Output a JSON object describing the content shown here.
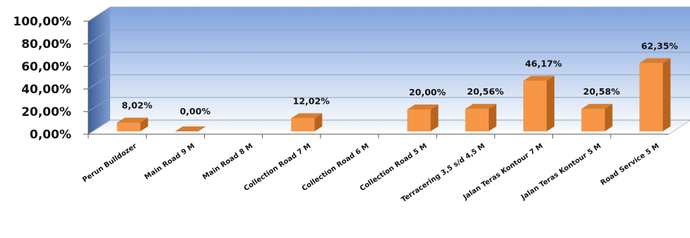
{
  "chart_data": {
    "type": "bar",
    "categories": [
      "Perun Bulldozer",
      "Main Road 9 M",
      "Main Road 8 M",
      "Collection Road 7 M",
      "Collection Road 6 M",
      "Collection Road 5 M",
      "Terracering 3,5 s/d 4,5 M",
      "Jalan Teras Kontour 7 M",
      "Jalan Teras Kontour 5 M",
      "Road Service 5 M"
    ],
    "values": [
      8.02,
      0.0,
      null,
      12.02,
      null,
      20.0,
      20.56,
      46.17,
      20.58,
      62.35
    ],
    "data_labels": [
      "8,02%",
      "0,00%",
      "",
      "12,02%",
      "",
      "20,00%",
      "20,56%",
      "46,17%",
      "20,58%",
      "62,35%"
    ],
    "y_ticks": [
      "0,00%",
      "20,00%",
      "40,00%",
      "60,00%",
      "80,00%",
      "100,00%"
    ],
    "ylim": [
      0,
      100
    ],
    "title": "",
    "xlabel": "",
    "ylabel": "",
    "grid": true,
    "legend": "none",
    "style": "3d-column",
    "colors": {
      "bar_front": "#f79646",
      "bar_top": "#d87d32",
      "bar_side": "#b8641f",
      "wall_top": "#7fa3dd",
      "wall_bottom": "#ffffff",
      "side_wall": "#4f6fa6",
      "gridline": "#8fa0bc"
    }
  }
}
